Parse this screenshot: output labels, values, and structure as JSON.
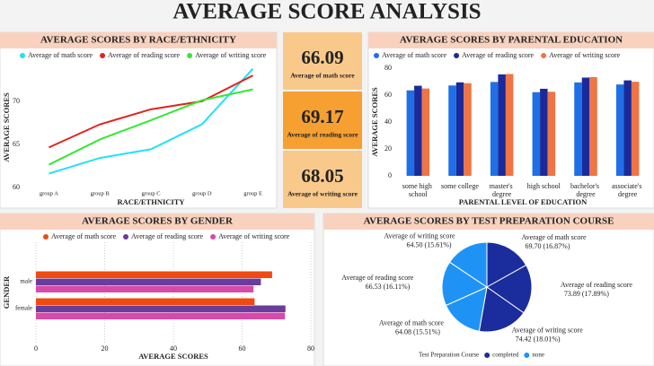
{
  "title": "AVERAGE SCORE ANALYSIS",
  "cards": [
    {
      "value": 66.09,
      "label": "Average of math score"
    },
    {
      "value": 69.17,
      "label": "Average of reading score"
    },
    {
      "value": 68.05,
      "label": "Average of writing score"
    }
  ],
  "chart_data": [
    {
      "type": "line",
      "title": "AVERAGE SCORES BY RACE/ETHNICITY",
      "x_label": "RACE/ETHNICITY",
      "y_label": "AVERAGE SCORES",
      "categories": [
        "group A",
        "group B",
        "group C",
        "group D",
        "group E"
      ],
      "series": [
        {
          "name": "Average of math score",
          "color": "#22e0f5",
          "values": [
            61.63,
            63.45,
            64.46,
            67.36,
            73.82
          ]
        },
        {
          "name": "Average of reading score",
          "color": "#e0241c",
          "values": [
            64.67,
            67.35,
            69.1,
            70.03,
            73.03
          ]
        },
        {
          "name": "Average of writing score",
          "color": "#35e835",
          "values": [
            62.67,
            65.6,
            67.83,
            70.15,
            71.41
          ]
        }
      ],
      "ylim": [
        59.5,
        74.5
      ],
      "yticks": [
        60,
        65,
        70
      ]
    },
    {
      "type": "bar",
      "title": "AVERAGE SCORES BY PARENTAL EDUCATION",
      "x_label": "PARENTAL LEVEL OF EDUCATION",
      "y_label": "AVERAGE SCORES",
      "categories": [
        "some high school",
        "some college",
        "master's degree",
        "high school",
        "bachelor's degree",
        "associate's degree"
      ],
      "series": [
        {
          "name": "Average of math score",
          "color": "#1f6fe6",
          "values": [
            63.5,
            67.13,
            69.75,
            62.14,
            69.39,
            67.88
          ]
        },
        {
          "name": "Average of reading score",
          "color": "#1a2a9a",
          "values": [
            66.94,
            69.46,
            75.37,
            64.7,
            73.0,
            70.93
          ]
        },
        {
          "name": "Average of writing score",
          "color": "#f07444",
          "values": [
            64.89,
            68.84,
            75.68,
            62.45,
            73.38,
            69.9
          ]
        }
      ],
      "ylim": [
        0,
        80
      ],
      "yticks": [
        0,
        20,
        40,
        60,
        80
      ]
    },
    {
      "type": "barh",
      "title": "AVERAGE SCORES BY GENDER",
      "x_label": "AVERAGE SCORES",
      "y_label": "GENDER",
      "categories": [
        "male",
        "female"
      ],
      "series": [
        {
          "name": "Average of math score",
          "color": "#f04a10",
          "values": [
            68.73,
            63.63
          ]
        },
        {
          "name": "Average of reading score",
          "color": "#6a3c9c",
          "values": [
            65.47,
            72.61
          ]
        },
        {
          "name": "Average of writing score",
          "color": "#d64aa8",
          "values": [
            63.31,
            72.47
          ]
        }
      ],
      "xlim": [
        0,
        80
      ],
      "xticks": [
        0,
        20,
        40,
        60,
        80
      ],
      "grid": true
    },
    {
      "type": "pie",
      "title": "AVERAGE SCORES BY TEST PREPARATION COURSE",
      "legend_title": "Test Preparation Course",
      "series": [
        {
          "name": "completed",
          "color": "#1b2c9c",
          "categories": [
            "Average of math score",
            "Average of reading score",
            "Average of writing score"
          ],
          "values": [
            69.7,
            73.89,
            74.42
          ],
          "value_labels": [
            "69.70 (16.87%)",
            "73.89 (17.89%)",
            "74.42 (18.01%)"
          ]
        },
        {
          "name": "none",
          "color": "#1f93f5",
          "categories": [
            "Average of math score",
            "Average of reading score",
            "Average of writing score"
          ],
          "values": [
            64.08,
            66.53,
            64.5
          ],
          "value_labels": [
            "64.08 (15.51%)",
            "66.53 (16.11%)",
            "64.50 (15.61%)"
          ]
        }
      ]
    }
  ]
}
